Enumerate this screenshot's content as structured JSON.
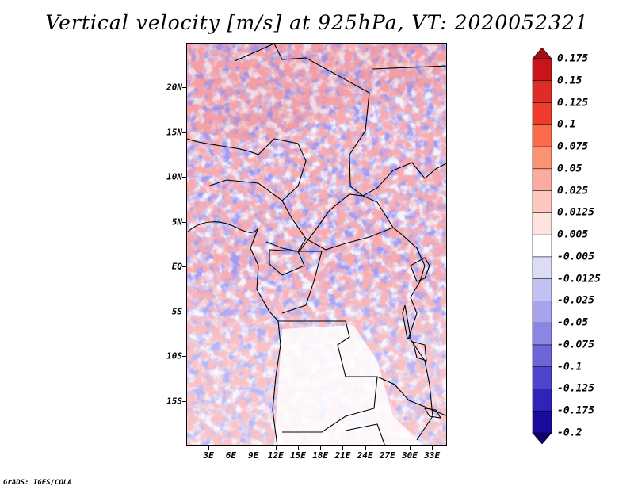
{
  "title": "Vertical velocity [m/s] at 925hPa, VT: 2020052321",
  "credit": "GrADS: IGES/COLA",
  "lat_labels": [
    "20N",
    "15N",
    "10N",
    "5N",
    "EQ",
    "5S",
    "10S",
    "15S"
  ],
  "lon_labels": [
    "3E",
    "6E",
    "9E",
    "12E",
    "15E",
    "18E",
    "21E",
    "24E",
    "27E",
    "30E",
    "33E"
  ],
  "colorbar": {
    "labels": [
      "0.175",
      "0.15",
      "0.125",
      "0.1",
      "0.075",
      "0.05",
      "0.025",
      "0.0125",
      "0.005",
      "-0.005",
      "-0.0125",
      "-0.025",
      "-0.05",
      "-0.075",
      "-0.1",
      "-0.125",
      "-0.175",
      "-0.2"
    ],
    "colors": [
      "#a50f15",
      "#c8151b",
      "#de2d26",
      "#ef3b2c",
      "#fb6a4a",
      "#fc9272",
      "#fcaba0",
      "#fcc8c0",
      "#fde3df",
      "#ffffff",
      "#dcdcf6",
      "#c4c2f2",
      "#a7a3ec",
      "#8b85e4",
      "#6d66d9",
      "#4d45cc",
      "#2f24b8",
      "#1a0a9e",
      "#0d0070"
    ]
  },
  "chart_data": {
    "type": "heatmap",
    "title": "Vertical velocity [m/s] at 925hPa, VT: 2020052321",
    "variable": "Vertical velocity",
    "units": "m/s",
    "level": "925hPa",
    "valid_time": "2020052321",
    "lon_range": [
      0,
      35
    ],
    "lat_range": [
      -20,
      25
    ],
    "contour_levels": [
      -0.2,
      -0.175,
      -0.125,
      -0.1,
      -0.075,
      -0.05,
      -0.025,
      -0.0125,
      -0.005,
      0.005,
      0.0125,
      0.025,
      0.05,
      0.075,
      0.1,
      0.125,
      0.15,
      0.175
    ],
    "field_description": "Mottled positive (red) and negative (blue) vertical velocity over Central Africa; strongest updrafts in the northern Sahel band, largely near-zero (white) over southern Angola/Zambia region."
  }
}
